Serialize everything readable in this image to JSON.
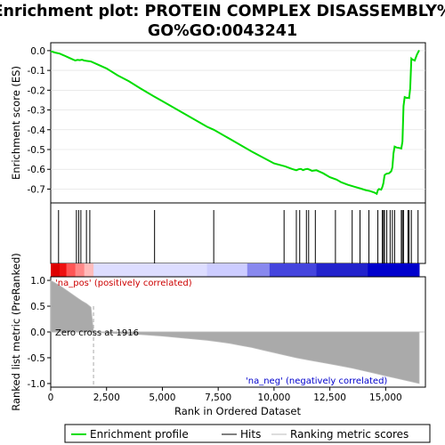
{
  "chart_data": {
    "type": "line",
    "title_line1": "Enrichment plot: PROTEIN COMPLEX DISASSEMBLY%",
    "title_line2": "GO%GO:0043241",
    "top_panel": {
      "ylabel": "Enrichment score (ES)",
      "ylim": [
        -0.77,
        0.04
      ],
      "yticks": [
        "0.0",
        "-0.1",
        "-0.2",
        "-0.3",
        "-0.4",
        "-0.5",
        "-0.6",
        "-0.7"
      ],
      "ytick_values": [
        0.0,
        -0.1,
        -0.2,
        -0.3,
        -0.4,
        -0.5,
        -0.6,
        -0.7
      ],
      "series": [
        {
          "name": "Enrichment profile",
          "color": "#00dd00",
          "x": [
            0,
            200,
            400,
            600,
            800,
            1000,
            1100,
            1200,
            1300,
            1400,
            1500,
            1600,
            1700,
            1800,
            2500,
            3000,
            3500,
            4000,
            4600,
            5000,
            6000,
            7000,
            7300,
            8000,
            9000,
            10000,
            10500,
            10800,
            11000,
            11100,
            11200,
            11300,
            11400,
            11500,
            11600,
            11700,
            11900,
            12000,
            12200,
            12500,
            12800,
            13000,
            13300,
            13600,
            13900,
            14100,
            14300,
            14500,
            14600,
            14650,
            14700,
            14800,
            14850,
            14900,
            14950,
            15000,
            15050,
            15150,
            15250,
            15300,
            15350,
            15400,
            15450,
            15500,
            15600,
            15700,
            15750,
            15800,
            15850,
            15900,
            15950,
            16000,
            16050,
            16100,
            16150,
            16200,
            16300,
            16400,
            16500
          ],
          "y": [
            -0.003,
            -0.01,
            -0.015,
            -0.025,
            -0.035,
            -0.045,
            -0.05,
            -0.047,
            -0.048,
            -0.046,
            -0.05,
            -0.052,
            -0.053,
            -0.055,
            -0.09,
            -0.125,
            -0.155,
            -0.19,
            -0.23,
            -0.255,
            -0.32,
            -0.385,
            -0.4,
            -0.445,
            -0.51,
            -0.57,
            -0.585,
            -0.598,
            -0.605,
            -0.6,
            -0.598,
            -0.604,
            -0.6,
            -0.598,
            -0.602,
            -0.608,
            -0.605,
            -0.61,
            -0.62,
            -0.64,
            -0.652,
            -0.665,
            -0.678,
            -0.688,
            -0.698,
            -0.705,
            -0.71,
            -0.718,
            -0.724,
            -0.705,
            -0.7,
            -0.703,
            -0.69,
            -0.67,
            -0.63,
            -0.625,
            -0.622,
            -0.62,
            -0.61,
            -0.59,
            -0.52,
            -0.485,
            -0.488,
            -0.49,
            -0.492,
            -0.495,
            -0.46,
            -0.28,
            -0.235,
            -0.237,
            -0.24,
            -0.238,
            -0.24,
            -0.19,
            -0.04,
            -0.045,
            -0.05,
            -0.02,
            0.002
          ]
        }
      ]
    },
    "hits_panel": {
      "legend_hits": "Hits",
      "hit_positions": [
        350,
        1150,
        1250,
        1350,
        1600,
        1750,
        4650,
        7300,
        10450,
        11000,
        11150,
        11450,
        11550,
        11850,
        12750,
        13500,
        13850,
        14250,
        14650,
        14850,
        14900,
        14950,
        15050,
        15200,
        15300,
        15400,
        15700,
        15750,
        15800,
        16000,
        16050,
        16150,
        16450
      ]
    },
    "bottom_panel": {
      "ylabel": "Ranked list metric (PreRanked)",
      "ylim": [
        -1.07,
        1.07
      ],
      "yticks": [
        "1.0",
        "0.5",
        "0.0",
        "-0.5",
        "-1.0"
      ],
      "ytick_values": [
        1.0,
        0.5,
        0.0,
        -0.5,
        -1.0
      ],
      "legend_metric": "Ranking metric scores",
      "metric_x": [
        0,
        200,
        400,
        600,
        800,
        1000,
        1200,
        1400,
        1600,
        1800,
        1916,
        2500,
        4000,
        5000,
        6000,
        7000,
        7500,
        8000,
        8500,
        9000,
        9500,
        10000,
        10500,
        11000,
        11500,
        12000,
        12500,
        13000,
        13500,
        14000,
        14500,
        15000,
        15500,
        16000,
        16500
      ],
      "metric_y": [
        1.0,
        0.95,
        0.9,
        0.84,
        0.78,
        0.72,
        0.66,
        0.6,
        0.55,
        0.48,
        0.0,
        -0.02,
        -0.05,
        -0.08,
        -0.12,
        -0.16,
        -0.19,
        -0.22,
        -0.26,
        -0.3,
        -0.35,
        -0.4,
        -0.45,
        -0.5,
        -0.54,
        -0.58,
        -0.62,
        -0.66,
        -0.7,
        -0.75,
        -0.8,
        -0.85,
        -0.9,
        -0.95,
        -1.0
      ],
      "annotation_pos": "'na_pos' (positively correlated)",
      "annotation_neg": "'na_neg' (negatively correlated)",
      "zero_cross_label": "Zero cross at 1916",
      "zero_cross": 1916,
      "xlabel": "Rank in Ordered Dataset",
      "xlim": [
        0,
        16500
      ],
      "xticks": [
        "0",
        "2,500",
        "5,000",
        "7,500",
        "10,000",
        "12,500",
        "15,000"
      ],
      "xtick_values": [
        0,
        2500,
        5000,
        7500,
        10000,
        12500,
        15000
      ]
    },
    "legend": {
      "profile_label": "Enrichment profile",
      "hits_label": "Hits",
      "metric_label": "Ranking metric scores"
    },
    "colors": {
      "profile": "#00dd00",
      "pos_annotation": "#cc0000",
      "neg_annotation": "#0000cc",
      "metric_line": "#bbbbbb",
      "metric_fill": "#aaaaaa",
      "band_red": "#dd0000",
      "band_blue": "#0000cc"
    }
  }
}
